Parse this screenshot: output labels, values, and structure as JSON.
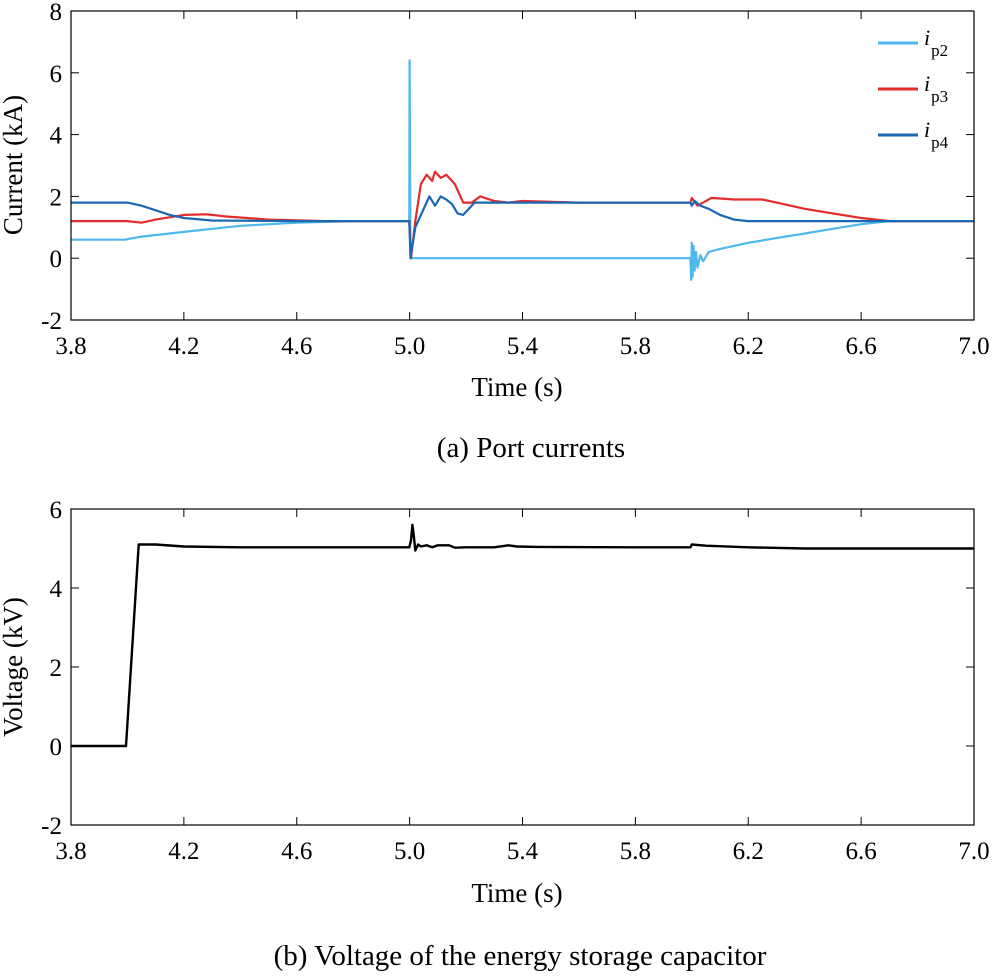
{
  "chart_data": [
    {
      "type": "line",
      "caption": "(a) Port currents",
      "xlabel": "Time (s)",
      "ylabel": "Current (kA)",
      "xlim": [
        3.8,
        7.0
      ],
      "ylim": [
        -2,
        8
      ],
      "xticks": [
        "3.8",
        "4.2",
        "4.6",
        "5.0",
        "5.4",
        "5.8",
        "6.2",
        "6.6",
        "7.0"
      ],
      "yticks": [
        "-2",
        "0",
        "2",
        "4",
        "6",
        "8"
      ],
      "legend_position": "top-right",
      "series": [
        {
          "name": "i",
          "sub": "p2",
          "color": "#4db8ec",
          "points": [
            [
              3.8,
              0.6
            ],
            [
              3.99,
              0.6
            ],
            [
              4.05,
              0.7
            ],
            [
              4.2,
              0.85
            ],
            [
              4.4,
              1.05
            ],
            [
              4.6,
              1.15
            ],
            [
              4.8,
              1.2
            ],
            [
              4.999,
              1.2
            ],
            [
              5.0,
              6.4
            ],
            [
              5.003,
              0.0
            ],
            [
              5.995,
              0.0
            ],
            [
              5.998,
              -0.7
            ],
            [
              6.0,
              0.5
            ],
            [
              6.003,
              -0.6
            ],
            [
              6.006,
              0.4
            ],
            [
              6.01,
              -0.4
            ],
            [
              6.015,
              0.2
            ],
            [
              6.02,
              -0.3
            ],
            [
              6.03,
              0.1
            ],
            [
              6.04,
              -0.1
            ],
            [
              6.06,
              0.2
            ],
            [
              6.1,
              0.3
            ],
            [
              6.2,
              0.5
            ],
            [
              6.3,
              0.65
            ],
            [
              6.4,
              0.8
            ],
            [
              6.5,
              0.95
            ],
            [
              6.6,
              1.1
            ],
            [
              6.7,
              1.2
            ],
            [
              7.0,
              1.2
            ]
          ]
        },
        {
          "name": "i",
          "sub": "p3",
          "color": "#e32b2b",
          "points": [
            [
              3.8,
              1.2
            ],
            [
              4.0,
              1.2
            ],
            [
              4.05,
              1.15
            ],
            [
              4.1,
              1.25
            ],
            [
              4.2,
              1.4
            ],
            [
              4.28,
              1.42
            ],
            [
              4.35,
              1.35
            ],
            [
              4.5,
              1.25
            ],
            [
              4.7,
              1.2
            ],
            [
              4.999,
              1.2
            ],
            [
              5.005,
              0.0
            ],
            [
              5.02,
              1.2
            ],
            [
              5.04,
              2.4
            ],
            [
              5.06,
              2.7
            ],
            [
              5.08,
              2.5
            ],
            [
              5.09,
              2.8
            ],
            [
              5.11,
              2.6
            ],
            [
              5.13,
              2.7
            ],
            [
              5.16,
              2.4
            ],
            [
              5.19,
              1.8
            ],
            [
              5.22,
              1.8
            ],
            [
              5.25,
              2.0
            ],
            [
              5.3,
              1.85
            ],
            [
              5.35,
              1.8
            ],
            [
              5.4,
              1.85
            ],
            [
              5.6,
              1.8
            ],
            [
              5.995,
              1.8
            ],
            [
              6.0,
              1.95
            ],
            [
              6.02,
              1.7
            ],
            [
              6.04,
              1.8
            ],
            [
              6.07,
              1.95
            ],
            [
              6.15,
              1.9
            ],
            [
              6.25,
              1.9
            ],
            [
              6.3,
              1.8
            ],
            [
              6.4,
              1.6
            ],
            [
              6.5,
              1.45
            ],
            [
              6.6,
              1.3
            ],
            [
              6.7,
              1.2
            ],
            [
              7.0,
              1.2
            ]
          ]
        },
        {
          "name": "i",
          "sub": "p4",
          "color": "#1a67b3",
          "points": [
            [
              3.8,
              1.8
            ],
            [
              4.0,
              1.8
            ],
            [
              4.05,
              1.7
            ],
            [
              4.1,
              1.55
            ],
            [
              4.15,
              1.4
            ],
            [
              4.2,
              1.3
            ],
            [
              4.3,
              1.22
            ],
            [
              4.6,
              1.2
            ],
            [
              4.999,
              1.2
            ],
            [
              5.003,
              0.0
            ],
            [
              5.02,
              1.0
            ],
            [
              5.05,
              1.6
            ],
            [
              5.07,
              2.0
            ],
            [
              5.09,
              1.7
            ],
            [
              5.11,
              2.0
            ],
            [
              5.13,
              1.9
            ],
            [
              5.15,
              1.75
            ],
            [
              5.17,
              1.45
            ],
            [
              5.19,
              1.4
            ],
            [
              5.21,
              1.6
            ],
            [
              5.23,
              1.8
            ],
            [
              5.3,
              1.8
            ],
            [
              5.6,
              1.8
            ],
            [
              5.995,
              1.8
            ],
            [
              6.0,
              1.7
            ],
            [
              6.01,
              1.85
            ],
            [
              6.03,
              1.7
            ],
            [
              6.06,
              1.6
            ],
            [
              6.1,
              1.4
            ],
            [
              6.15,
              1.25
            ],
            [
              6.2,
              1.2
            ],
            [
              7.0,
              1.2
            ]
          ]
        }
      ]
    },
    {
      "type": "line",
      "caption": "(b) Voltage of the energy storage capacitor",
      "xlabel": "Time (s)",
      "ylabel": "Voltage (kV)",
      "xlim": [
        3.8,
        7.0
      ],
      "ylim": [
        -2,
        6
      ],
      "xticks": [
        "3.8",
        "4.2",
        "4.6",
        "5.0",
        "5.4",
        "5.8",
        "6.2",
        "6.6",
        "7.0"
      ],
      "yticks": [
        "-2",
        "0",
        "2",
        "4",
        "6"
      ],
      "series": [
        {
          "name": "Voltage",
          "color": "#000000",
          "points": [
            [
              3.8,
              0.0
            ],
            [
              3.995,
              0.0
            ],
            [
              4.04,
              5.1
            ],
            [
              4.1,
              5.1
            ],
            [
              4.2,
              5.05
            ],
            [
              4.4,
              5.03
            ],
            [
              4.999,
              5.03
            ],
            [
              5.005,
              5.2
            ],
            [
              5.01,
              5.6
            ],
            [
              5.015,
              5.3
            ],
            [
              5.02,
              4.95
            ],
            [
              5.03,
              5.1
            ],
            [
              5.04,
              5.05
            ],
            [
              5.06,
              5.08
            ],
            [
              5.08,
              5.03
            ],
            [
              5.1,
              5.08
            ],
            [
              5.14,
              5.08
            ],
            [
              5.16,
              5.02
            ],
            [
              5.2,
              5.03
            ],
            [
              5.3,
              5.03
            ],
            [
              5.35,
              5.08
            ],
            [
              5.38,
              5.05
            ],
            [
              5.45,
              5.04
            ],
            [
              5.8,
              5.03
            ],
            [
              5.995,
              5.03
            ],
            [
              6.0,
              5.1
            ],
            [
              6.05,
              5.07
            ],
            [
              6.2,
              5.03
            ],
            [
              6.4,
              5.0
            ],
            [
              7.0,
              5.0
            ]
          ]
        }
      ]
    }
  ]
}
